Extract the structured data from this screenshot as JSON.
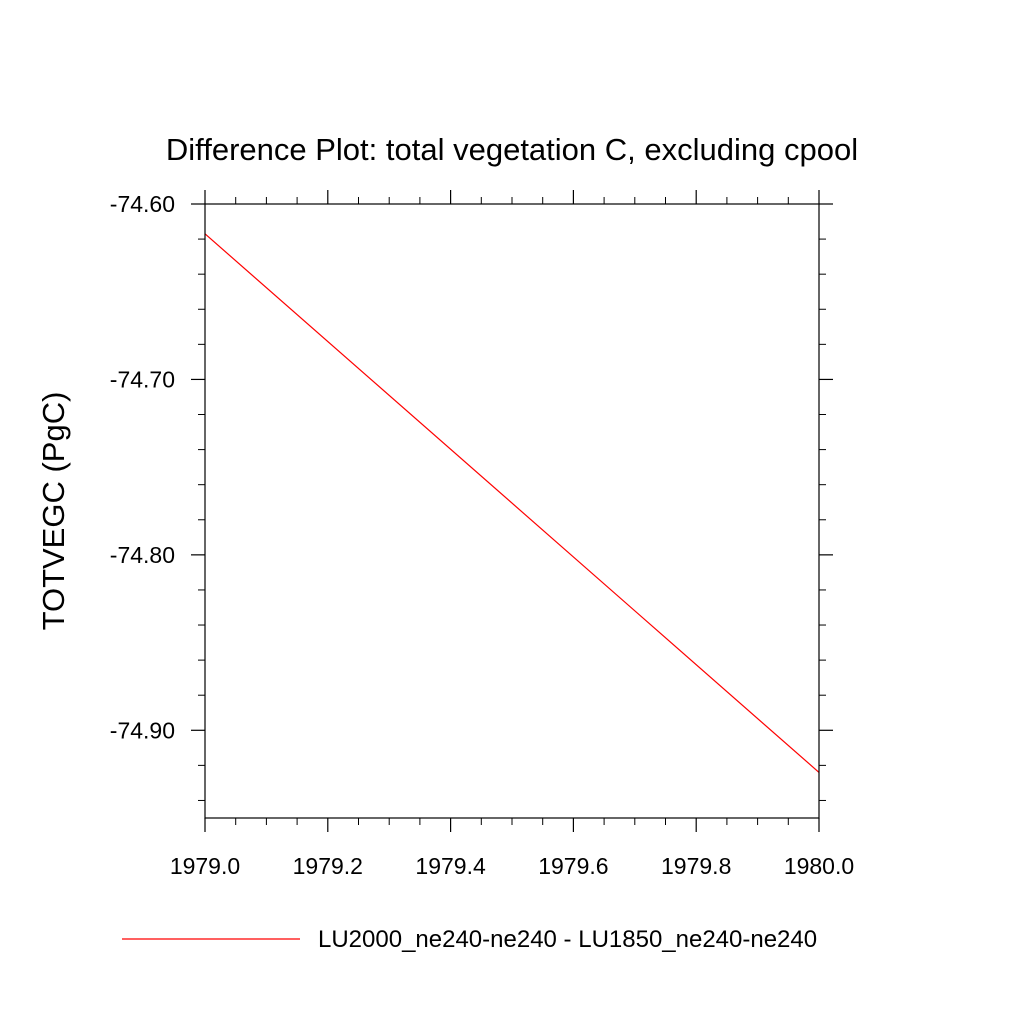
{
  "chart_data": {
    "type": "line",
    "title": "Difference Plot: total vegetation C, excluding cpool",
    "xlabel": "",
    "ylabel": "TOTVEGC  (PgC)",
    "xlim": [
      1979.0,
      1980.0
    ],
    "ylim": [
      -74.95,
      -74.6
    ],
    "x_ticks": [
      1979.0,
      1979.2,
      1979.4,
      1979.6,
      1979.8,
      1980.0
    ],
    "x_tick_labels": [
      "1979.0",
      "1979.2",
      "1979.4",
      "1979.6",
      "1979.8",
      "1980.0"
    ],
    "y_ticks": [
      -74.6,
      -74.7,
      -74.8,
      -74.9
    ],
    "y_tick_labels": [
      "-74.60",
      "-74.70",
      "-74.80",
      "-74.90"
    ],
    "grid": false,
    "legend_position": "bottom",
    "series": [
      {
        "name": "LU2000_ne240-ne240 - LU1850_ne240-ne240",
        "color": "#ff0000",
        "x": [
          1979.0,
          1980.0
        ],
        "y": [
          -74.617,
          -74.924
        ]
      }
    ]
  }
}
